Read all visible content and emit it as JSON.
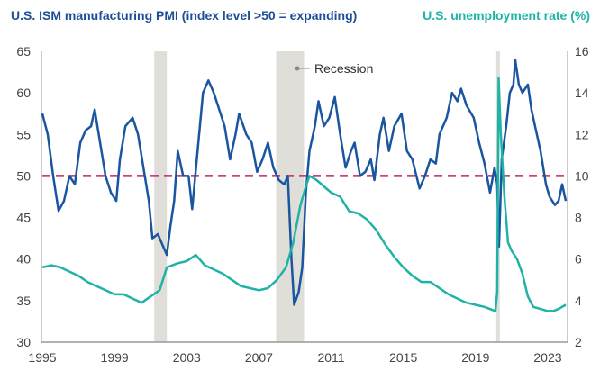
{
  "chart_data": {
    "type": "line",
    "title_left": "U.S. ISM manufacturing PMI (index level >50 = expanding)",
    "title_right": "U.S. unemployment rate (%)",
    "colors": {
      "pmi": "#1a55a0",
      "unemployment": "#1fb3a6",
      "reference": "#c2286f",
      "recession": "#e0ded9",
      "axis": "#999999"
    },
    "x_ticks": [
      "1995",
      "1999",
      "2003",
      "2007",
      "2011",
      "2015",
      "2019",
      "2023"
    ],
    "xlim": [
      1995,
      2024.05
    ],
    "y_left": {
      "ylim": [
        30,
        65
      ],
      "ticks": [
        "30",
        "35",
        "40",
        "45",
        "50",
        "55",
        "60",
        "65"
      ]
    },
    "y_right": {
      "ylim": [
        2,
        16
      ],
      "ticks": [
        "2",
        "4",
        "6",
        "8",
        "10",
        "12",
        "14",
        "16"
      ]
    },
    "reference_line": {
      "axis": "left",
      "value": 50,
      "style": "dashed"
    },
    "recession_label": "Recession",
    "recessions": [
      [
        2001.2,
        2001.9
      ],
      [
        2007.95,
        2009.5
      ],
      [
        2020.15,
        2020.35
      ]
    ],
    "grid": false,
    "series": [
      {
        "key": "pmi",
        "axis": "left",
        "points": [
          [
            1995.0,
            57.5
          ],
          [
            1995.3,
            55
          ],
          [
            1995.6,
            50
          ],
          [
            1995.9,
            45.8
          ],
          [
            1996.2,
            47
          ],
          [
            1996.5,
            50
          ],
          [
            1996.8,
            49
          ],
          [
            1997.1,
            54
          ],
          [
            1997.4,
            55.5
          ],
          [
            1997.7,
            56
          ],
          [
            1997.9,
            58
          ],
          [
            1998.2,
            54
          ],
          [
            1998.5,
            50
          ],
          [
            1998.8,
            48
          ],
          [
            1999.1,
            47
          ],
          [
            1999.3,
            52
          ],
          [
            1999.6,
            56
          ],
          [
            2000.0,
            57
          ],
          [
            2000.3,
            55
          ],
          [
            2000.6,
            51
          ],
          [
            2000.9,
            47
          ],
          [
            2001.1,
            42.5
          ],
          [
            2001.4,
            43
          ],
          [
            2001.7,
            41.5
          ],
          [
            2001.9,
            40.5
          ],
          [
            2002.1,
            44
          ],
          [
            2002.3,
            47
          ],
          [
            2002.5,
            53
          ],
          [
            2002.8,
            50
          ],
          [
            2003.1,
            50
          ],
          [
            2003.3,
            46
          ],
          [
            2003.6,
            53
          ],
          [
            2003.9,
            60
          ],
          [
            2004.2,
            61.5
          ],
          [
            2004.5,
            60
          ],
          [
            2004.8,
            58
          ],
          [
            2005.1,
            56
          ],
          [
            2005.4,
            52
          ],
          [
            2005.7,
            55
          ],
          [
            2005.9,
            57.5
          ],
          [
            2006.3,
            55
          ],
          [
            2006.6,
            54
          ],
          [
            2006.9,
            50.5
          ],
          [
            2007.2,
            52
          ],
          [
            2007.5,
            54
          ],
          [
            2007.8,
            51
          ],
          [
            2008.1,
            49.5
          ],
          [
            2008.4,
            49
          ],
          [
            2008.6,
            50
          ],
          [
            2008.8,
            40
          ],
          [
            2008.95,
            34.5
          ],
          [
            2009.2,
            36
          ],
          [
            2009.4,
            39
          ],
          [
            2009.6,
            48
          ],
          [
            2009.8,
            53
          ],
          [
            2010.1,
            56
          ],
          [
            2010.3,
            59
          ],
          [
            2010.6,
            56
          ],
          [
            2010.9,
            57
          ],
          [
            2011.2,
            59.5
          ],
          [
            2011.5,
            55
          ],
          [
            2011.8,
            51
          ],
          [
            2012.1,
            53
          ],
          [
            2012.3,
            54
          ],
          [
            2012.6,
            50
          ],
          [
            2012.9,
            50.5
          ],
          [
            2013.2,
            52
          ],
          [
            2013.4,
            49.5
          ],
          [
            2013.7,
            55
          ],
          [
            2013.9,
            57
          ],
          [
            2014.2,
            53
          ],
          [
            2014.5,
            56
          ],
          [
            2014.9,
            57.5
          ],
          [
            2015.2,
            53
          ],
          [
            2015.5,
            52
          ],
          [
            2015.9,
            48.5
          ],
          [
            2016.2,
            50
          ],
          [
            2016.5,
            52
          ],
          [
            2016.8,
            51.5
          ],
          [
            2017.0,
            55
          ],
          [
            2017.4,
            57
          ],
          [
            2017.7,
            60
          ],
          [
            2018.0,
            59
          ],
          [
            2018.2,
            60.5
          ],
          [
            2018.5,
            58.5
          ],
          [
            2018.9,
            57
          ],
          [
            2019.2,
            54
          ],
          [
            2019.5,
            51.5
          ],
          [
            2019.8,
            48
          ],
          [
            2020.05,
            51
          ],
          [
            2020.2,
            49
          ],
          [
            2020.3,
            41.5
          ],
          [
            2020.45,
            52
          ],
          [
            2020.7,
            56
          ],
          [
            2020.9,
            60
          ],
          [
            2021.1,
            61
          ],
          [
            2021.2,
            64
          ],
          [
            2021.4,
            61
          ],
          [
            2021.6,
            60
          ],
          [
            2021.9,
            61
          ],
          [
            2022.1,
            58
          ],
          [
            2022.3,
            56
          ],
          [
            2022.6,
            53
          ],
          [
            2022.9,
            49
          ],
          [
            2023.1,
            47.5
          ],
          [
            2023.4,
            46.5
          ],
          [
            2023.6,
            47
          ],
          [
            2023.8,
            49
          ],
          [
            2024.0,
            47
          ]
        ]
      },
      {
        "key": "unemployment",
        "axis": "right",
        "points": [
          [
            1995.0,
            5.6
          ],
          [
            1995.5,
            5.7
          ],
          [
            1996.0,
            5.6
          ],
          [
            1996.5,
            5.4
          ],
          [
            1997.0,
            5.2
          ],
          [
            1997.5,
            4.9
          ],
          [
            1998.0,
            4.7
          ],
          [
            1998.5,
            4.5
          ],
          [
            1999.0,
            4.3
          ],
          [
            1999.5,
            4.3
          ],
          [
            2000.0,
            4.1
          ],
          [
            2000.5,
            3.9
          ],
          [
            2001.0,
            4.2
          ],
          [
            2001.5,
            4.5
          ],
          [
            2001.9,
            5.6
          ],
          [
            2002.5,
            5.8
          ],
          [
            2003.0,
            5.9
          ],
          [
            2003.5,
            6.2
          ],
          [
            2004.0,
            5.7
          ],
          [
            2004.5,
            5.5
          ],
          [
            2005.0,
            5.3
          ],
          [
            2005.5,
            5.0
          ],
          [
            2006.0,
            4.7
          ],
          [
            2006.5,
            4.6
          ],
          [
            2007.0,
            4.5
          ],
          [
            2007.5,
            4.6
          ],
          [
            2008.0,
            5.0
          ],
          [
            2008.5,
            5.6
          ],
          [
            2008.9,
            6.8
          ],
          [
            2009.3,
            8.6
          ],
          [
            2009.6,
            9.5
          ],
          [
            2009.8,
            10.0
          ],
          [
            2010.2,
            9.8
          ],
          [
            2010.6,
            9.5
          ],
          [
            2011.0,
            9.2
          ],
          [
            2011.5,
            9.0
          ],
          [
            2012.0,
            8.3
          ],
          [
            2012.5,
            8.2
          ],
          [
            2013.0,
            7.9
          ],
          [
            2013.5,
            7.4
          ],
          [
            2014.0,
            6.7
          ],
          [
            2014.5,
            6.1
          ],
          [
            2015.0,
            5.6
          ],
          [
            2015.5,
            5.2
          ],
          [
            2016.0,
            4.9
          ],
          [
            2016.5,
            4.9
          ],
          [
            2017.0,
            4.6
          ],
          [
            2017.5,
            4.3
          ],
          [
            2018.0,
            4.1
          ],
          [
            2018.5,
            3.9
          ],
          [
            2019.0,
            3.8
          ],
          [
            2019.5,
            3.7
          ],
          [
            2020.1,
            3.5
          ],
          [
            2020.2,
            4.4
          ],
          [
            2020.28,
            14.7
          ],
          [
            2020.4,
            12
          ],
          [
            2020.6,
            9
          ],
          [
            2020.8,
            6.8
          ],
          [
            2021.0,
            6.4
          ],
          [
            2021.3,
            6.0
          ],
          [
            2021.6,
            5.3
          ],
          [
            2021.9,
            4.2
          ],
          [
            2022.2,
            3.7
          ],
          [
            2022.6,
            3.6
          ],
          [
            2023.0,
            3.5
          ],
          [
            2023.3,
            3.5
          ],
          [
            2023.6,
            3.6
          ],
          [
            2024.0,
            3.8
          ]
        ]
      }
    ]
  }
}
